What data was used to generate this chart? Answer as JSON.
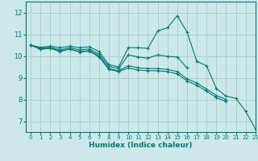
{
  "xlabel": "Humidex (Indice chaleur)",
  "xlim": [
    -0.5,
    23
  ],
  "ylim": [
    6.5,
    12.5
  ],
  "yticks": [
    7,
    8,
    9,
    10,
    11,
    12
  ],
  "xticks": [
    0,
    1,
    2,
    3,
    4,
    5,
    6,
    7,
    8,
    9,
    10,
    11,
    12,
    13,
    14,
    15,
    16,
    17,
    18,
    19,
    20,
    21,
    22,
    23
  ],
  "background_color": "#cce8e8",
  "grid_color": "#aacccc",
  "line_color": "#007878",
  "series": [
    [
      10.5,
      10.4,
      10.45,
      10.38,
      10.45,
      10.38,
      10.42,
      10.2,
      9.6,
      9.5,
      10.38,
      10.38,
      10.35,
      11.15,
      11.3,
      11.85,
      11.1,
      9.75,
      9.55,
      8.5,
      8.15,
      8.05,
      7.45,
      6.65
    ],
    [
      10.5,
      10.35,
      10.4,
      10.28,
      10.38,
      10.28,
      10.32,
      10.08,
      9.52,
      9.42,
      10.05,
      9.95,
      9.9,
      10.05,
      9.98,
      9.95,
      9.45,
      null,
      null,
      null,
      null,
      null,
      null,
      null
    ],
    [
      10.5,
      10.32,
      10.38,
      10.22,
      10.32,
      10.2,
      10.25,
      10.0,
      9.42,
      9.32,
      9.55,
      9.45,
      9.42,
      9.42,
      9.38,
      9.28,
      8.95,
      8.75,
      8.48,
      8.18,
      8.0,
      null,
      null,
      null
    ],
    [
      10.5,
      10.3,
      10.35,
      10.2,
      10.32,
      10.18,
      10.22,
      9.95,
      9.38,
      9.28,
      9.45,
      9.35,
      9.32,
      9.32,
      9.28,
      9.18,
      8.85,
      8.65,
      8.38,
      8.08,
      7.9,
      null,
      null,
      null
    ]
  ]
}
